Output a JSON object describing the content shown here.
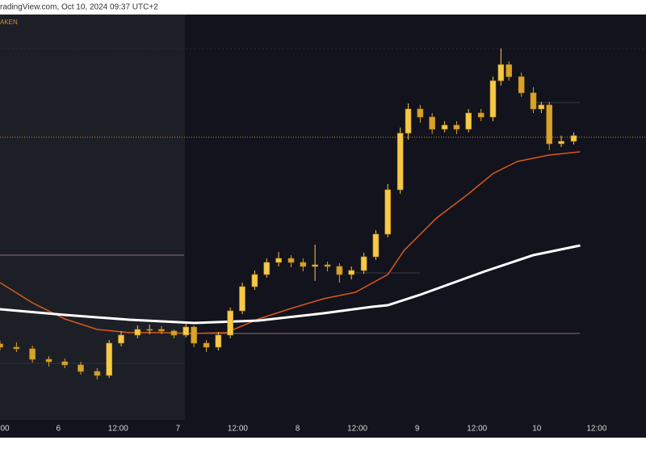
{
  "chart_data": {
    "type": "candlestick",
    "title": "radingView.com, Oct 10, 2024 09:37 UTC+2",
    "subtitle": "AKEN",
    "xlim": [
      -11.7,
      117.9
    ],
    "ylim": [
      0,
      500
    ],
    "xticks": [
      {
        "value": -11,
        "label": "00"
      },
      {
        "value": 0,
        "label": "6"
      },
      {
        "value": 12,
        "label": "12:00"
      },
      {
        "value": 24,
        "label": "7"
      },
      {
        "value": 36,
        "label": "12:00"
      },
      {
        "value": 48,
        "label": "8"
      },
      {
        "value": 60,
        "label": "12:00"
      },
      {
        "value": 72,
        "label": "9"
      },
      {
        "value": 84,
        "label": "12:00"
      },
      {
        "value": 96,
        "label": "10"
      },
      {
        "value": 108,
        "label": "12:00"
      }
    ],
    "up_color": "#f7c948",
    "down_color": "#d9a32a",
    "x": [
      -11.7,
      -8.4,
      -5.2,
      -1.9,
      1.3,
      4.5,
      7.8,
      10.2,
      12.6,
      15.9,
      18.3,
      20.7,
      23.2,
      25.6,
      27.2,
      29.7,
      32.1,
      34.5,
      36.9,
      39.4,
      41.8,
      44.2,
      46.7,
      49.1,
      51.5,
      54.0,
      56.4,
      58.8,
      61.3,
      63.7,
      66.1,
      68.6,
      70.2,
      72.6,
      75.0,
      77.5,
      79.9,
      82.3,
      84.8,
      87.2,
      88.8,
      90.4,
      92.9,
      95.3,
      96.9,
      98.5,
      100.9,
      103.4
    ],
    "open": [
      92,
      88,
      86,
      73,
      70,
      66,
      58,
      53,
      93,
      103,
      110,
      110,
      108,
      103,
      113,
      93,
      88,
      103,
      133,
      163,
      178,
      193,
      198,
      193,
      188,
      190,
      188,
      178,
      183,
      200,
      228,
      283,
      353,
      383,
      373,
      358,
      363,
      358,
      378,
      373,
      418,
      438,
      423,
      403,
      383,
      388,
      340,
      343
    ],
    "high": [
      96,
      94,
      90,
      77,
      74,
      70,
      62,
      97,
      108,
      115,
      116,
      114,
      110,
      118,
      115,
      97,
      107,
      137,
      168,
      183,
      198,
      206,
      202,
      198,
      215,
      194,
      192,
      188,
      205,
      233,
      290,
      360,
      390,
      388,
      378,
      368,
      368,
      383,
      383,
      423,
      458,
      442,
      428,
      410,
      392,
      392,
      350,
      354
    ],
    "low": [
      84,
      82,
      69,
      64,
      62,
      54,
      48,
      50,
      89,
      99,
      104,
      104,
      99,
      100,
      88,
      82,
      84,
      99,
      129,
      159,
      174,
      188,
      187,
      182,
      170,
      182,
      168,
      172,
      179,
      196,
      224,
      278,
      345,
      366,
      352,
      354,
      352,
      354,
      368,
      368,
      412,
      418,
      398,
      378,
      378,
      332,
      336,
      339
    ],
    "close": [
      88,
      86,
      73,
      70,
      66,
      58,
      53,
      93,
      103,
      110,
      110,
      108,
      103,
      113,
      93,
      88,
      103,
      133,
      163,
      178,
      193,
      198,
      193,
      188,
      190,
      188,
      178,
      183,
      200,
      228,
      283,
      353,
      383,
      373,
      358,
      363,
      358,
      378,
      373,
      418,
      438,
      423,
      403,
      383,
      388,
      340,
      343,
      350
    ],
    "lines": [
      {
        "color": "#d9581e",
        "x": [
          -11.7,
          -5.2,
          1.3,
          7.8,
          14.3,
          20.7,
          27.2,
          33.7,
          40.2,
          46.7,
          53.2,
          59.6,
          66.1,
          69.4,
          75.9,
          82.3,
          87.2,
          92.1,
          98.5,
          104.7
        ],
        "values": [
          168,
          143,
          123,
          110,
          106,
          106,
          105,
          106,
          123,
          136,
          148,
          156,
          178,
          208,
          248,
          278,
          303,
          318,
          326,
          330
        ]
      },
      {
        "color": "#ffffff",
        "x": [
          -11.7,
          1.3,
          14.3,
          27.2,
          40.2,
          53.2,
          62.9,
          66.1,
          72.6,
          85.6,
          95.3,
          104.7
        ],
        "values": [
          135,
          128,
          122,
          118,
          121,
          130,
          138,
          140,
          153,
          182,
          202,
          214
        ]
      }
    ],
    "levels": [
      {
        "value": 348,
        "color": "#c8952a"
      },
      {
        "value": 202,
        "color": "#8a6e78"
      },
      {
        "value": 105,
        "color": "#8a6e78"
      }
    ]
  }
}
